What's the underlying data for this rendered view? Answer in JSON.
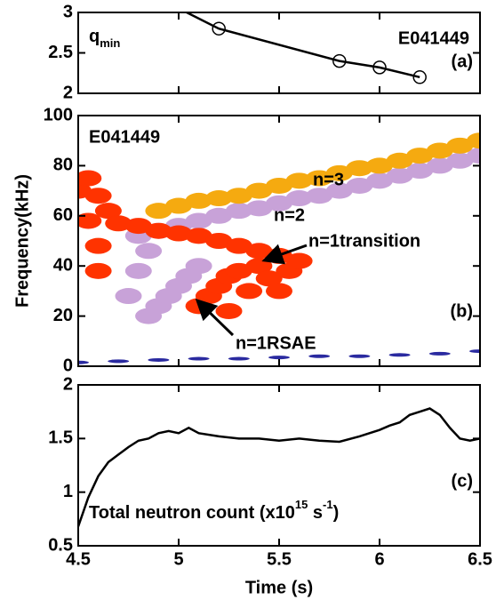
{
  "chart_data": [
    {
      "type": "line",
      "label": "q",
      "label_sub": "min",
      "shot": "E041449",
      "panel": "(a)",
      "x": [
        5.04,
        5.2,
        5.8,
        6.0,
        6.2
      ],
      "values": [
        3,
        2.8,
        2.4,
        2.32,
        2.2
      ],
      "color": "#000000",
      "markers": {
        "x": [
          5.2,
          5.8,
          6.0,
          6.2
        ],
        "values": [
          2.8,
          2.4,
          2.32,
          2.2
        ]
      },
      "xlim": [
        4.5,
        6.5
      ],
      "xticks": [
        4.5,
        5,
        5.5,
        6,
        6.5
      ],
      "ylim": [
        2,
        3
      ],
      "yticks": [
        2,
        2.5,
        3
      ]
    },
    {
      "type": "scatter",
      "shot": "E041449",
      "panel": "(b)",
      "ylabel": "Frequency(kHz)",
      "annotations": [
        "n=3",
        "n=2",
        "n=1transition",
        "n=1RSAE"
      ],
      "series": [
        {
          "color": "#c8a2d8",
          "x": [
            4.8,
            4.9,
            5.0,
            5.1,
            5.2,
            5.3,
            5.4,
            5.5,
            5.6,
            5.7,
            5.8,
            5.9,
            6.0,
            6.1,
            6.2,
            6.3,
            6.4,
            6.5,
            4.85,
            4.9,
            4.95,
            5.0,
            5.05,
            5.1,
            4.75,
            4.8,
            4.85
          ],
          "values": [
            52,
            54,
            56,
            58,
            60,
            62,
            63,
            65,
            67,
            68,
            70,
            72,
            74,
            76,
            78,
            80,
            82,
            84,
            20,
            24,
            28,
            32,
            36,
            40,
            28,
            38,
            46
          ]
        },
        {
          "color": "#f5aa10",
          "x": [
            4.9,
            5.0,
            5.1,
            5.2,
            5.3,
            5.4,
            5.5,
            5.6,
            5.7,
            5.8,
            5.9,
            6.0,
            6.1,
            6.2,
            6.3,
            6.4,
            6.5
          ],
          "values": [
            62,
            64,
            66,
            67,
            68,
            70,
            72,
            74,
            75,
            77,
            79,
            80,
            82,
            84,
            86,
            88,
            90
          ]
        },
        {
          "color": "#ff3300",
          "x": [
            4.5,
            4.55,
            4.6,
            4.65,
            4.55,
            4.7,
            4.8,
            4.9,
            5.0,
            5.1,
            5.2,
            5.3,
            5.4,
            5.5,
            5.15,
            5.2,
            5.25,
            5.3,
            5.35,
            5.4,
            5.45,
            5.5,
            5.55,
            5.6,
            5.1,
            5.25,
            4.6,
            4.6
          ],
          "values": [
            70,
            75,
            68,
            62,
            58,
            57,
            56,
            54,
            53,
            52,
            50,
            48,
            46,
            44,
            28,
            32,
            36,
            38,
            30,
            40,
            35,
            30,
            38,
            42,
            24,
            22,
            38,
            48
          ]
        },
        {
          "color": "#2a2aa0",
          "x": [
            4.5,
            4.7,
            4.9,
            5.1,
            5.3,
            5.5,
            5.7,
            5.9,
            6.1,
            6.3,
            6.5
          ],
          "values": [
            1.5,
            2,
            2.5,
            3,
            3,
            3.5,
            4,
            4,
            4.5,
            5,
            6
          ]
        }
      ],
      "xlim": [
        4.5,
        6.5
      ],
      "xticks": [
        4.5,
        5,
        5.5,
        6,
        6.5
      ],
      "ylim": [
        0,
        100
      ],
      "yticks": [
        0,
        20,
        40,
        60,
        80,
        100
      ]
    },
    {
      "type": "line",
      "panel": "(c)",
      "label_parts": [
        "Total neutron count (x10",
        "15",
        " s",
        "-1",
        ")"
      ],
      "xlabel": "Time (s)",
      "color": "#000000",
      "x": [
        4.5,
        4.55,
        4.6,
        4.65,
        4.7,
        4.75,
        4.8,
        4.85,
        4.9,
        4.95,
        5.0,
        5.05,
        5.1,
        5.2,
        5.3,
        5.4,
        5.5,
        5.6,
        5.7,
        5.8,
        5.9,
        6.0,
        6.05,
        6.1,
        6.15,
        6.2,
        6.25,
        6.3,
        6.35,
        6.4,
        6.45,
        6.5
      ],
      "values": [
        0.68,
        0.95,
        1.15,
        1.28,
        1.35,
        1.42,
        1.48,
        1.5,
        1.55,
        1.57,
        1.55,
        1.6,
        1.55,
        1.52,
        1.5,
        1.5,
        1.48,
        1.5,
        1.48,
        1.47,
        1.52,
        1.58,
        1.62,
        1.65,
        1.72,
        1.75,
        1.78,
        1.72,
        1.6,
        1.5,
        1.48,
        1.5
      ],
      "xlim": [
        4.5,
        6.5
      ],
      "xticks": [
        4.5,
        5,
        5.5,
        6,
        6.5
      ],
      "ylim": [
        0.5,
        2
      ],
      "yticks": [
        0.5,
        1,
        1.5,
        2
      ]
    }
  ]
}
